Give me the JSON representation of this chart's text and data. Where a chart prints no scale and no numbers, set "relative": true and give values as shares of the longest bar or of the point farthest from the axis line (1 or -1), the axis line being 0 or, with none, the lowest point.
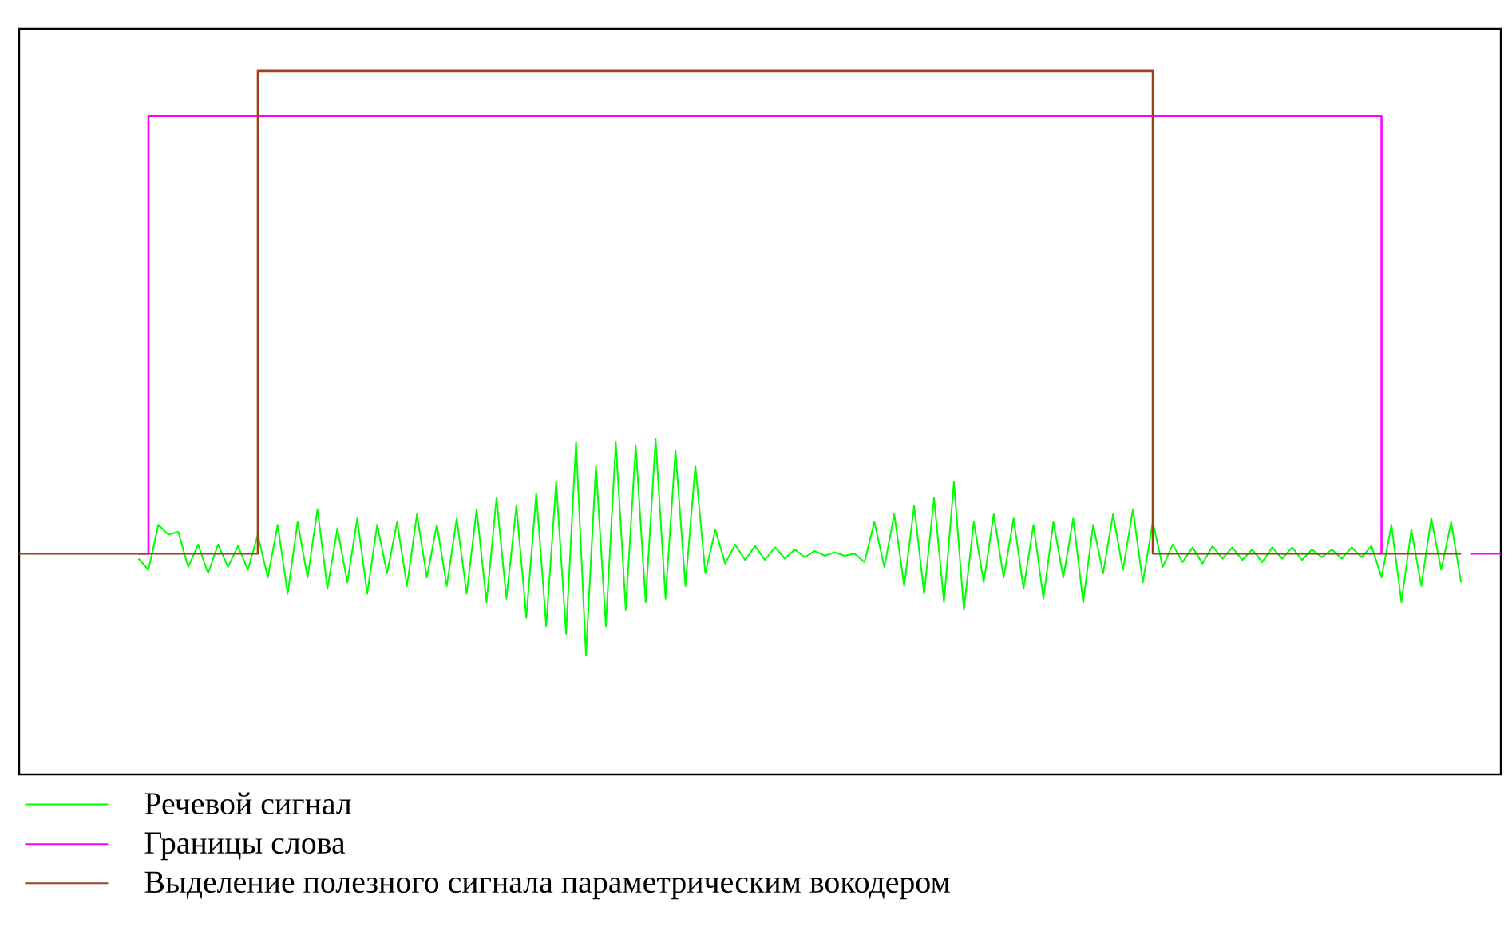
{
  "chart_data": {
    "type": "line",
    "relative": true,
    "legend": "bottom",
    "tick_labels": false,
    "marker": "none",
    "categories": [
      null,
      null,
      null,
      null,
      null,
      null,
      null,
      null,
      null,
      null,
      null,
      null,
      null,
      null,
      null,
      null,
      null,
      null,
      null,
      null,
      null,
      null,
      null,
      null,
      null,
      null,
      null,
      null,
      null,
      null,
      null,
      null,
      null,
      null,
      null,
      null,
      null,
      null,
      null,
      null,
      null,
      null,
      null,
      null,
      null,
      null,
      null,
      null,
      null,
      null,
      null,
      null,
      null,
      null,
      null,
      null,
      null,
      null,
      null,
      null,
      null,
      null,
      null,
      null,
      null,
      null,
      null,
      null,
      null,
      null,
      null,
      null,
      null,
      null,
      null,
      null,
      null,
      null,
      null,
      null,
      null,
      null,
      null,
      null,
      null,
      null,
      null,
      null,
      null,
      null,
      null,
      null,
      null,
      null,
      null,
      null,
      null,
      null,
      null,
      null,
      null,
      null,
      null,
      null,
      null,
      null,
      null,
      null,
      null,
      null,
      null,
      null,
      null,
      null,
      null,
      null,
      null,
      null,
      null,
      null,
      null,
      null,
      null,
      null,
      null,
      null,
      null,
      null,
      null,
      null,
      null,
      null,
      null,
      null,
      null,
      null,
      null,
      null,
      null,
      null,
      null,
      null,
      null,
      null,
      null,
      null,
      null,
      null,
      null,
      null
    ],
    "series": [
      {
        "name": "Речевой сигнал",
        "color": "#00ff00",
        "values": [
          null,
          null,
          null,
          null,
          null,
          null,
          null,
          null,
          null,
          null,
          null,
          null,
          0.307,
          0.291,
          0.355,
          0.341,
          0.345,
          0.295,
          0.327,
          0.286,
          0.327,
          0.295,
          0.325,
          0.291,
          0.341,
          0.28,
          0.355,
          0.257,
          0.359,
          0.28,
          0.377,
          0.264,
          0.35,
          0.273,
          0.364,
          0.257,
          0.355,
          0.286,
          0.359,
          0.268,
          0.37,
          0.28,
          0.355,
          0.268,
          0.364,
          0.257,
          0.377,
          0.245,
          0.393,
          0.25,
          0.382,
          0.223,
          0.4,
          0.211,
          0.416,
          0.2,
          0.473,
          0.17,
          0.439,
          0.211,
          0.473,
          0.234,
          0.468,
          0.245,
          0.477,
          0.25,
          0.461,
          0.268,
          0.439,
          0.286,
          0.348,
          0.3,
          0.327,
          0.305,
          0.325,
          0.305,
          0.323,
          0.307,
          0.32,
          0.309,
          0.318,
          0.311,
          0.316,
          0.311,
          0.314,
          0.302,
          0.359,
          0.295,
          0.37,
          0.268,
          0.382,
          0.257,
          0.393,
          0.245,
          0.416,
          0.234,
          0.359,
          0.273,
          0.37,
          0.28,
          0.364,
          0.264,
          0.355,
          0.25,
          0.359,
          0.28,
          0.364,
          0.245,
          0.355,
          0.286,
          0.37,
          0.291,
          0.377,
          0.273,
          0.359,
          0.295,
          0.327,
          0.302,
          0.323,
          0.3,
          0.325,
          0.307,
          0.323,
          0.305,
          0.32,
          0.302,
          0.323,
          0.307,
          0.323,
          0.305,
          0.32,
          0.309,
          0.32,
          0.307,
          0.323,
          0.309,
          0.325,
          0.28,
          0.355,
          0.245,
          0.348,
          0.268,
          0.364,
          0.291,
          0.359,
          0.273,
          null,
          null,
          null,
          null
        ]
      },
      {
        "name": "Границы слова",
        "type": "step",
        "color": "#ff00ff",
        "values": [
          null,
          null,
          null,
          null,
          null,
          null,
          null,
          null,
          null,
          null,
          null,
          null,
          0.314,
          0.936,
          0.936,
          0.936,
          0.936,
          0.936,
          0.936,
          0.936,
          0.936,
          0.936,
          0.936,
          0.936,
          0.936,
          0.936,
          0.936,
          0.936,
          0.936,
          0.936,
          0.936,
          0.936,
          0.936,
          0.936,
          0.936,
          0.936,
          0.936,
          0.936,
          0.936,
          0.936,
          0.936,
          0.936,
          0.936,
          0.936,
          0.936,
          0.936,
          0.936,
          0.936,
          0.936,
          0.936,
          0.936,
          0.936,
          0.936,
          0.936,
          0.936,
          0.936,
          0.936,
          0.936,
          0.936,
          0.936,
          0.936,
          0.936,
          0.936,
          0.936,
          0.936,
          0.936,
          0.936,
          0.936,
          0.936,
          0.936,
          0.936,
          0.936,
          0.936,
          0.936,
          0.936,
          0.936,
          0.936,
          0.936,
          0.936,
          0.936,
          0.936,
          0.936,
          0.936,
          0.936,
          0.936,
          0.936,
          0.936,
          0.936,
          0.936,
          0.936,
          0.936,
          0.936,
          0.936,
          0.936,
          0.936,
          0.936,
          0.936,
          0.936,
          0.936,
          0.936,
          0.936,
          0.936,
          0.936,
          0.936,
          0.936,
          0.936,
          0.936,
          0.936,
          0.936,
          0.936,
          0.936,
          0.936,
          0.936,
          0.936,
          0.936,
          0.936,
          0.936,
          0.936,
          0.936,
          0.936,
          0.936,
          0.936,
          0.936,
          0.936,
          0.936,
          0.936,
          0.936,
          0.936,
          0.936,
          0.936,
          0.936,
          0.936,
          0.936,
          0.936,
          0.936,
          0.936,
          0.936,
          0.314,
          null,
          null,
          null,
          null,
          null,
          null,
          null,
          null,
          0.314,
          0.314,
          0.314,
          0.314
        ]
      },
      {
        "name": "Выделение полезного сигнала параметрическим вокодером",
        "type": "step",
        "color": "#a0401a",
        "values": [
          0.314,
          0.314,
          0.314,
          0.314,
          0.314,
          0.314,
          0.314,
          0.314,
          0.314,
          0.314,
          0.314,
          0.314,
          0.314,
          0.314,
          0.314,
          0.314,
          0.314,
          0.314,
          0.314,
          0.314,
          0.314,
          0.314,
          0.314,
          0.314,
          1,
          1,
          1,
          1,
          1,
          1,
          1,
          1,
          1,
          1,
          1,
          1,
          1,
          1,
          1,
          1,
          1,
          1,
          1,
          1,
          1,
          1,
          1,
          1,
          1,
          1,
          1,
          1,
          1,
          1,
          1,
          1,
          1,
          1,
          1,
          1,
          1,
          1,
          1,
          1,
          1,
          1,
          1,
          1,
          1,
          1,
          1,
          1,
          1,
          1,
          1,
          1,
          1,
          1,
          1,
          1,
          1,
          1,
          1,
          1,
          1,
          1,
          1,
          1,
          1,
          1,
          1,
          1,
          1,
          1,
          1,
          1,
          1,
          1,
          1,
          1,
          1,
          1,
          1,
          1,
          1,
          1,
          1,
          1,
          1,
          1,
          1,
          1,
          1,
          1,
          0.314,
          0.314,
          0.314,
          0.314,
          0.314,
          0.314,
          0.314,
          0.314,
          0.314,
          0.314,
          0.314,
          0.314,
          0.314,
          0.314,
          0.314,
          0.314,
          0.314,
          0.314,
          0.314,
          0.314,
          0.314,
          0.314,
          0.314,
          0.314,
          0.314,
          0.314,
          0.314,
          0.314,
          0.314,
          0.314,
          0.314,
          0.314,
          null,
          null,
          null,
          null
        ]
      }
    ]
  }
}
